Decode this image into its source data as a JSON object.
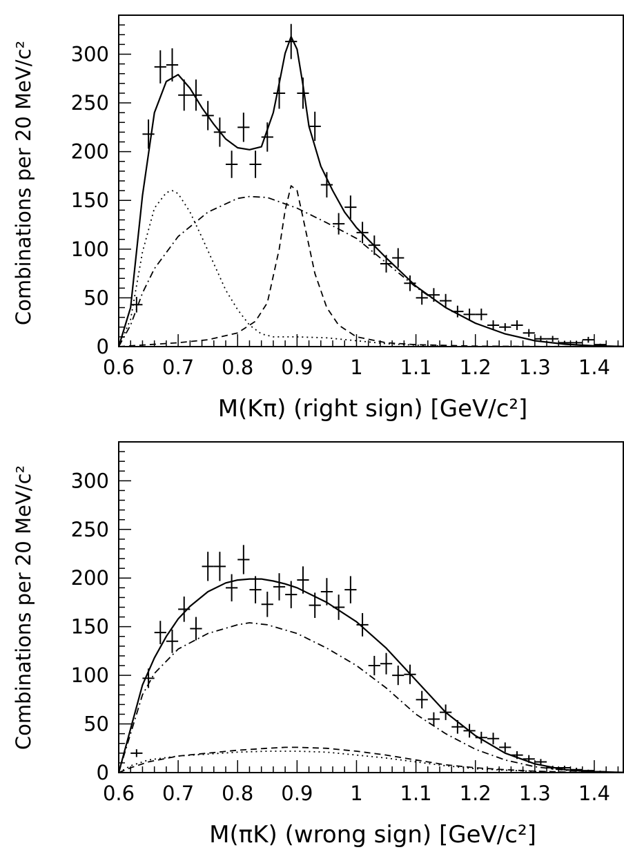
{
  "chart_data": [
    {
      "type": "line",
      "xlabel": "M(Kπ) (right sign) [GeV/c²]",
      "ylabel": "Combinations per 20 MeV/c²",
      "xlim": [
        0.6,
        1.45
      ],
      "ylim": [
        0,
        340
      ],
      "x_ticks": [
        "0.6",
        "0.7",
        "0.8",
        "0.9",
        "1",
        "1.1",
        "1.2",
        "1.3",
        "1.4"
      ],
      "y_ticks": [
        "0",
        "50",
        "100",
        "150",
        "200",
        "250",
        "300"
      ],
      "grid": false,
      "data_points": [
        [
          0.63,
          43,
          8
        ],
        [
          0.65,
          218,
          15
        ],
        [
          0.67,
          287,
          17
        ],
        [
          0.69,
          289,
          17
        ],
        [
          0.71,
          258,
          16
        ],
        [
          0.73,
          258,
          16
        ],
        [
          0.75,
          237,
          15
        ],
        [
          0.77,
          220,
          15
        ],
        [
          0.79,
          187,
          14
        ],
        [
          0.81,
          225,
          15
        ],
        [
          0.83,
          187,
          14
        ],
        [
          0.85,
          215,
          15
        ],
        [
          0.87,
          260,
          16
        ],
        [
          0.89,
          313,
          18
        ],
        [
          0.91,
          260,
          16
        ],
        [
          0.93,
          226,
          15
        ],
        [
          0.95,
          166,
          13
        ],
        [
          0.97,
          126,
          11
        ],
        [
          0.99,
          143,
          12
        ],
        [
          1.01,
          117,
          11
        ],
        [
          1.03,
          104,
          10
        ],
        [
          1.05,
          85,
          9
        ],
        [
          1.07,
          91,
          10
        ],
        [
          1.09,
          65,
          8
        ],
        [
          1.11,
          50,
          7
        ],
        [
          1.13,
          53,
          7
        ],
        [
          1.15,
          47,
          7
        ],
        [
          1.17,
          36,
          6
        ],
        [
          1.19,
          33,
          6
        ],
        [
          1.21,
          33,
          6
        ],
        [
          1.23,
          22,
          5
        ],
        [
          1.25,
          20,
          4
        ],
        [
          1.27,
          22,
          5
        ],
        [
          1.29,
          14,
          4
        ],
        [
          1.31,
          8,
          3
        ],
        [
          1.33,
          8,
          3
        ],
        [
          1.35,
          4,
          2
        ],
        [
          1.37,
          4,
          2
        ],
        [
          1.39,
          7,
          3
        ],
        [
          1.41,
          2,
          1
        ]
      ],
      "series": [
        {
          "style": "solid",
          "x": [
            0.6,
            0.62,
            0.64,
            0.66,
            0.68,
            0.7,
            0.72,
            0.74,
            0.76,
            0.78,
            0.8,
            0.82,
            0.84,
            0.86,
            0.87,
            0.88,
            0.89,
            0.9,
            0.91,
            0.92,
            0.94,
            0.96,
            0.98,
            1.0,
            1.05,
            1.1,
            1.15,
            1.2,
            1.25,
            1.3,
            1.35,
            1.4,
            1.45
          ],
          "values": [
            0,
            40,
            155,
            240,
            272,
            279,
            265,
            245,
            228,
            213,
            204,
            202,
            205,
            240,
            270,
            301,
            318,
            305,
            268,
            226,
            185,
            160,
            138,
            122,
            91,
            62,
            40,
            24,
            13,
            6,
            2.5,
            0.8,
            0.2
          ]
        },
        {
          "style": "dotted",
          "x": [
            0.6,
            0.62,
            0.64,
            0.66,
            0.68,
            0.69,
            0.7,
            0.72,
            0.74,
            0.76,
            0.78,
            0.8,
            0.82,
            0.84,
            0.86,
            0.9,
            0.95,
            1.0,
            1.05,
            1.1,
            1.15
          ],
          "values": [
            0,
            28,
            97,
            142,
            158,
            160,
            157,
            138,
            112,
            85,
            58,
            38,
            22,
            13,
            10,
            10,
            9,
            6,
            3,
            1.5,
            0.5
          ]
        },
        {
          "style": "dash-dot",
          "x": [
            0.6,
            0.62,
            0.64,
            0.66,
            0.7,
            0.75,
            0.8,
            0.82,
            0.85,
            0.9,
            0.95,
            1.0,
            1.05,
            1.1,
            1.15,
            1.2,
            1.25,
            1.3,
            1.35,
            1.4,
            1.45
          ],
          "values": [
            0,
            22,
            55,
            80,
            113,
            138,
            152,
            154,
            153,
            142,
            127,
            111,
            86,
            61,
            40,
            24,
            13,
            6,
            2.5,
            0.8,
            0.2
          ]
        },
        {
          "style": "dashed",
          "x": [
            0.6,
            0.65,
            0.7,
            0.75,
            0.8,
            0.83,
            0.85,
            0.87,
            0.88,
            0.89,
            0.9,
            0.91,
            0.93,
            0.95,
            0.97,
            1.0,
            1.05,
            1.1,
            1.2,
            1.3,
            1.45
          ],
          "values": [
            0,
            2,
            4,
            7,
            14,
            26,
            45,
            100,
            140,
            165,
            160,
            132,
            75,
            40,
            22,
            10,
            4,
            2,
            0.5,
            0.2,
            0
          ]
        }
      ]
    },
    {
      "type": "line",
      "xlabel": "M(πK) (wrong sign) [GeV/c²]",
      "ylabel": "Combinations per 20 MeV/c²",
      "xlim": [
        0.6,
        1.45
      ],
      "ylim": [
        0,
        340
      ],
      "x_ticks": [
        "0.6",
        "0.7",
        "0.8",
        "0.9",
        "1",
        "1.1",
        "1.2",
        "1.3",
        "1.4"
      ],
      "y_ticks": [
        "0",
        "50",
        "100",
        "150",
        "200",
        "250",
        "300"
      ],
      "grid": false,
      "data_points": [
        [
          0.63,
          20,
          4
        ],
        [
          0.65,
          97,
          10
        ],
        [
          0.67,
          144,
          12
        ],
        [
          0.69,
          135,
          12
        ],
        [
          0.71,
          168,
          13
        ],
        [
          0.73,
          148,
          12
        ],
        [
          0.75,
          212,
          15
        ],
        [
          0.77,
          212,
          15
        ],
        [
          0.79,
          190,
          14
        ],
        [
          0.81,
          219,
          15
        ],
        [
          0.83,
          188,
          14
        ],
        [
          0.85,
          173,
          13
        ],
        [
          0.87,
          191,
          14
        ],
        [
          0.89,
          183,
          14
        ],
        [
          0.91,
          198,
          14
        ],
        [
          0.93,
          172,
          13
        ],
        [
          0.95,
          186,
          14
        ],
        [
          0.97,
          170,
          13
        ],
        [
          0.99,
          188,
          14
        ],
        [
          1.01,
          152,
          12
        ],
        [
          1.03,
          110,
          10
        ],
        [
          1.05,
          112,
          11
        ],
        [
          1.07,
          100,
          10
        ],
        [
          1.09,
          101,
          10
        ],
        [
          1.11,
          75,
          9
        ],
        [
          1.13,
          55,
          7
        ],
        [
          1.15,
          62,
          8
        ],
        [
          1.17,
          47,
          7
        ],
        [
          1.19,
          43,
          7
        ],
        [
          1.21,
          36,
          6
        ],
        [
          1.23,
          35,
          6
        ],
        [
          1.25,
          26,
          5
        ],
        [
          1.27,
          18,
          4
        ],
        [
          1.29,
          14,
          4
        ],
        [
          1.31,
          11,
          3
        ],
        [
          1.33,
          5,
          2
        ],
        [
          1.35,
          5,
          2
        ],
        [
          1.37,
          3,
          2
        ],
        [
          1.39,
          2,
          1
        ],
        [
          1.41,
          1,
          1
        ]
      ],
      "series": [
        {
          "style": "solid",
          "x": [
            0.6,
            0.62,
            0.64,
            0.66,
            0.68,
            0.7,
            0.72,
            0.75,
            0.78,
            0.8,
            0.82,
            0.84,
            0.86,
            0.88,
            0.9,
            0.95,
            1.0,
            1.05,
            1.1,
            1.15,
            1.2,
            1.25,
            1.3,
            1.35,
            1.4,
            1.45
          ],
          "values": [
            0,
            45,
            90,
            118,
            140,
            158,
            171,
            186,
            195,
            198,
            199,
            199,
            197,
            194,
            190,
            175,
            155,
            128,
            95,
            62,
            38,
            20,
            9,
            3,
            1,
            0.2
          ]
        },
        {
          "style": "dash-dot",
          "x": [
            0.6,
            0.62,
            0.64,
            0.66,
            0.7,
            0.75,
            0.8,
            0.82,
            0.85,
            0.9,
            0.95,
            1.0,
            1.05,
            1.1,
            1.15,
            1.2,
            1.25,
            1.3,
            1.35,
            1.4,
            1.45
          ],
          "values": [
            0,
            40,
            80,
            102,
            127,
            143,
            152,
            154,
            152,
            143,
            128,
            110,
            87,
            60,
            40,
            24,
            13,
            6,
            2.5,
            0.8,
            0.2
          ]
        },
        {
          "style": "dashed",
          "x": [
            0.6,
            0.62,
            0.65,
            0.7,
            0.75,
            0.8,
            0.85,
            0.88,
            0.9,
            0.95,
            1.0,
            1.05,
            1.1,
            1.15,
            1.2,
            1.25,
            1.3,
            1.35,
            1.4
          ],
          "values": [
            0,
            5,
            11,
            17,
            20,
            23,
            25,
            26,
            26,
            25,
            22,
            18,
            13,
            8,
            5,
            3,
            1.5,
            0.6,
            0.2
          ]
        },
        {
          "style": "dotted",
          "x": [
            0.6,
            0.62,
            0.65,
            0.7,
            0.75,
            0.8,
            0.85,
            0.88,
            0.9,
            0.95,
            1.0,
            1.05,
            1.1,
            1.15,
            1.2,
            1.25,
            1.3,
            1.35,
            1.4
          ],
          "values": [
            0,
            7,
            13,
            17,
            19,
            21,
            22,
            22,
            22,
            21,
            18,
            15,
            11,
            7,
            4,
            2.5,
            1.2,
            0.5,
            0.2
          ]
        }
      ]
    }
  ]
}
